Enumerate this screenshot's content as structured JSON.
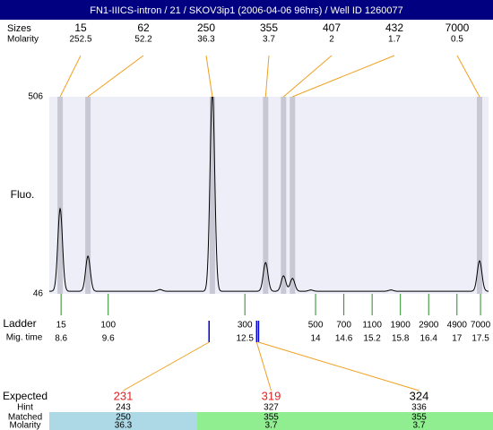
{
  "title": "FN1-IIICS-intron / 21 / SKOV3ip1 (2006-04-06 96hrs) / Well ID 1260077",
  "header_rows": [
    {
      "label": "Sizes",
      "values": [
        15,
        62,
        250,
        355,
        407,
        432,
        7000
      ]
    },
    {
      "label": "Molarity",
      "values": [
        252.5,
        52.2,
        36.3,
        3.7,
        2,
        1.7,
        0.5
      ]
    }
  ],
  "peaks": {
    "times": [
      8.58,
      9.17,
      11.81,
      12.94,
      13.32,
      13.51,
      17.48
    ],
    "heights": [
      245,
      134,
      520,
      119,
      88,
      82,
      123
    ]
  },
  "minor_peaks": {
    "times": [
      10.7,
      13.9,
      15.6
    ],
    "heights": [
      56,
      55,
      55
    ]
  },
  "plot": {
    "ylabel": "Fluo.",
    "ylim": [
      46,
      506
    ],
    "yticks": [
      46,
      506
    ],
    "xlim": [
      8.35,
      17.67
    ],
    "baseline": 52
  },
  "ladder": {
    "label": "Ladder",
    "time_label": "Mig. time",
    "sizes": [
      15,
      100,
      300,
      500,
      700,
      1100,
      1900,
      2900,
      4900,
      7000
    ],
    "times": [
      8.6,
      9.6,
      12.5,
      14,
      14.6,
      15.2,
      15.8,
      16.4,
      17,
      17.5
    ]
  },
  "expected": {
    "labels": [
      "Expected",
      "Hint",
      "Matched",
      "Molarity"
    ],
    "columns": [
      {
        "expected": 231,
        "expected_color": "#e02020",
        "hint": 243,
        "matched": 250,
        "molarity": 36.3,
        "marker_time": 11.74,
        "fill": "#add8e6"
      },
      {
        "expected": 319,
        "expected_color": "#e02020",
        "hint": 327,
        "matched": 355,
        "molarity": 3.7,
        "marker_time": 12.75,
        "fill": "#90ee90"
      },
      {
        "expected": 324,
        "expected_color": "#000000",
        "hint": 336,
        "matched": 355,
        "molarity": 3.7,
        "marker_time": 12.79,
        "fill": "#90ee90"
      }
    ]
  }
}
